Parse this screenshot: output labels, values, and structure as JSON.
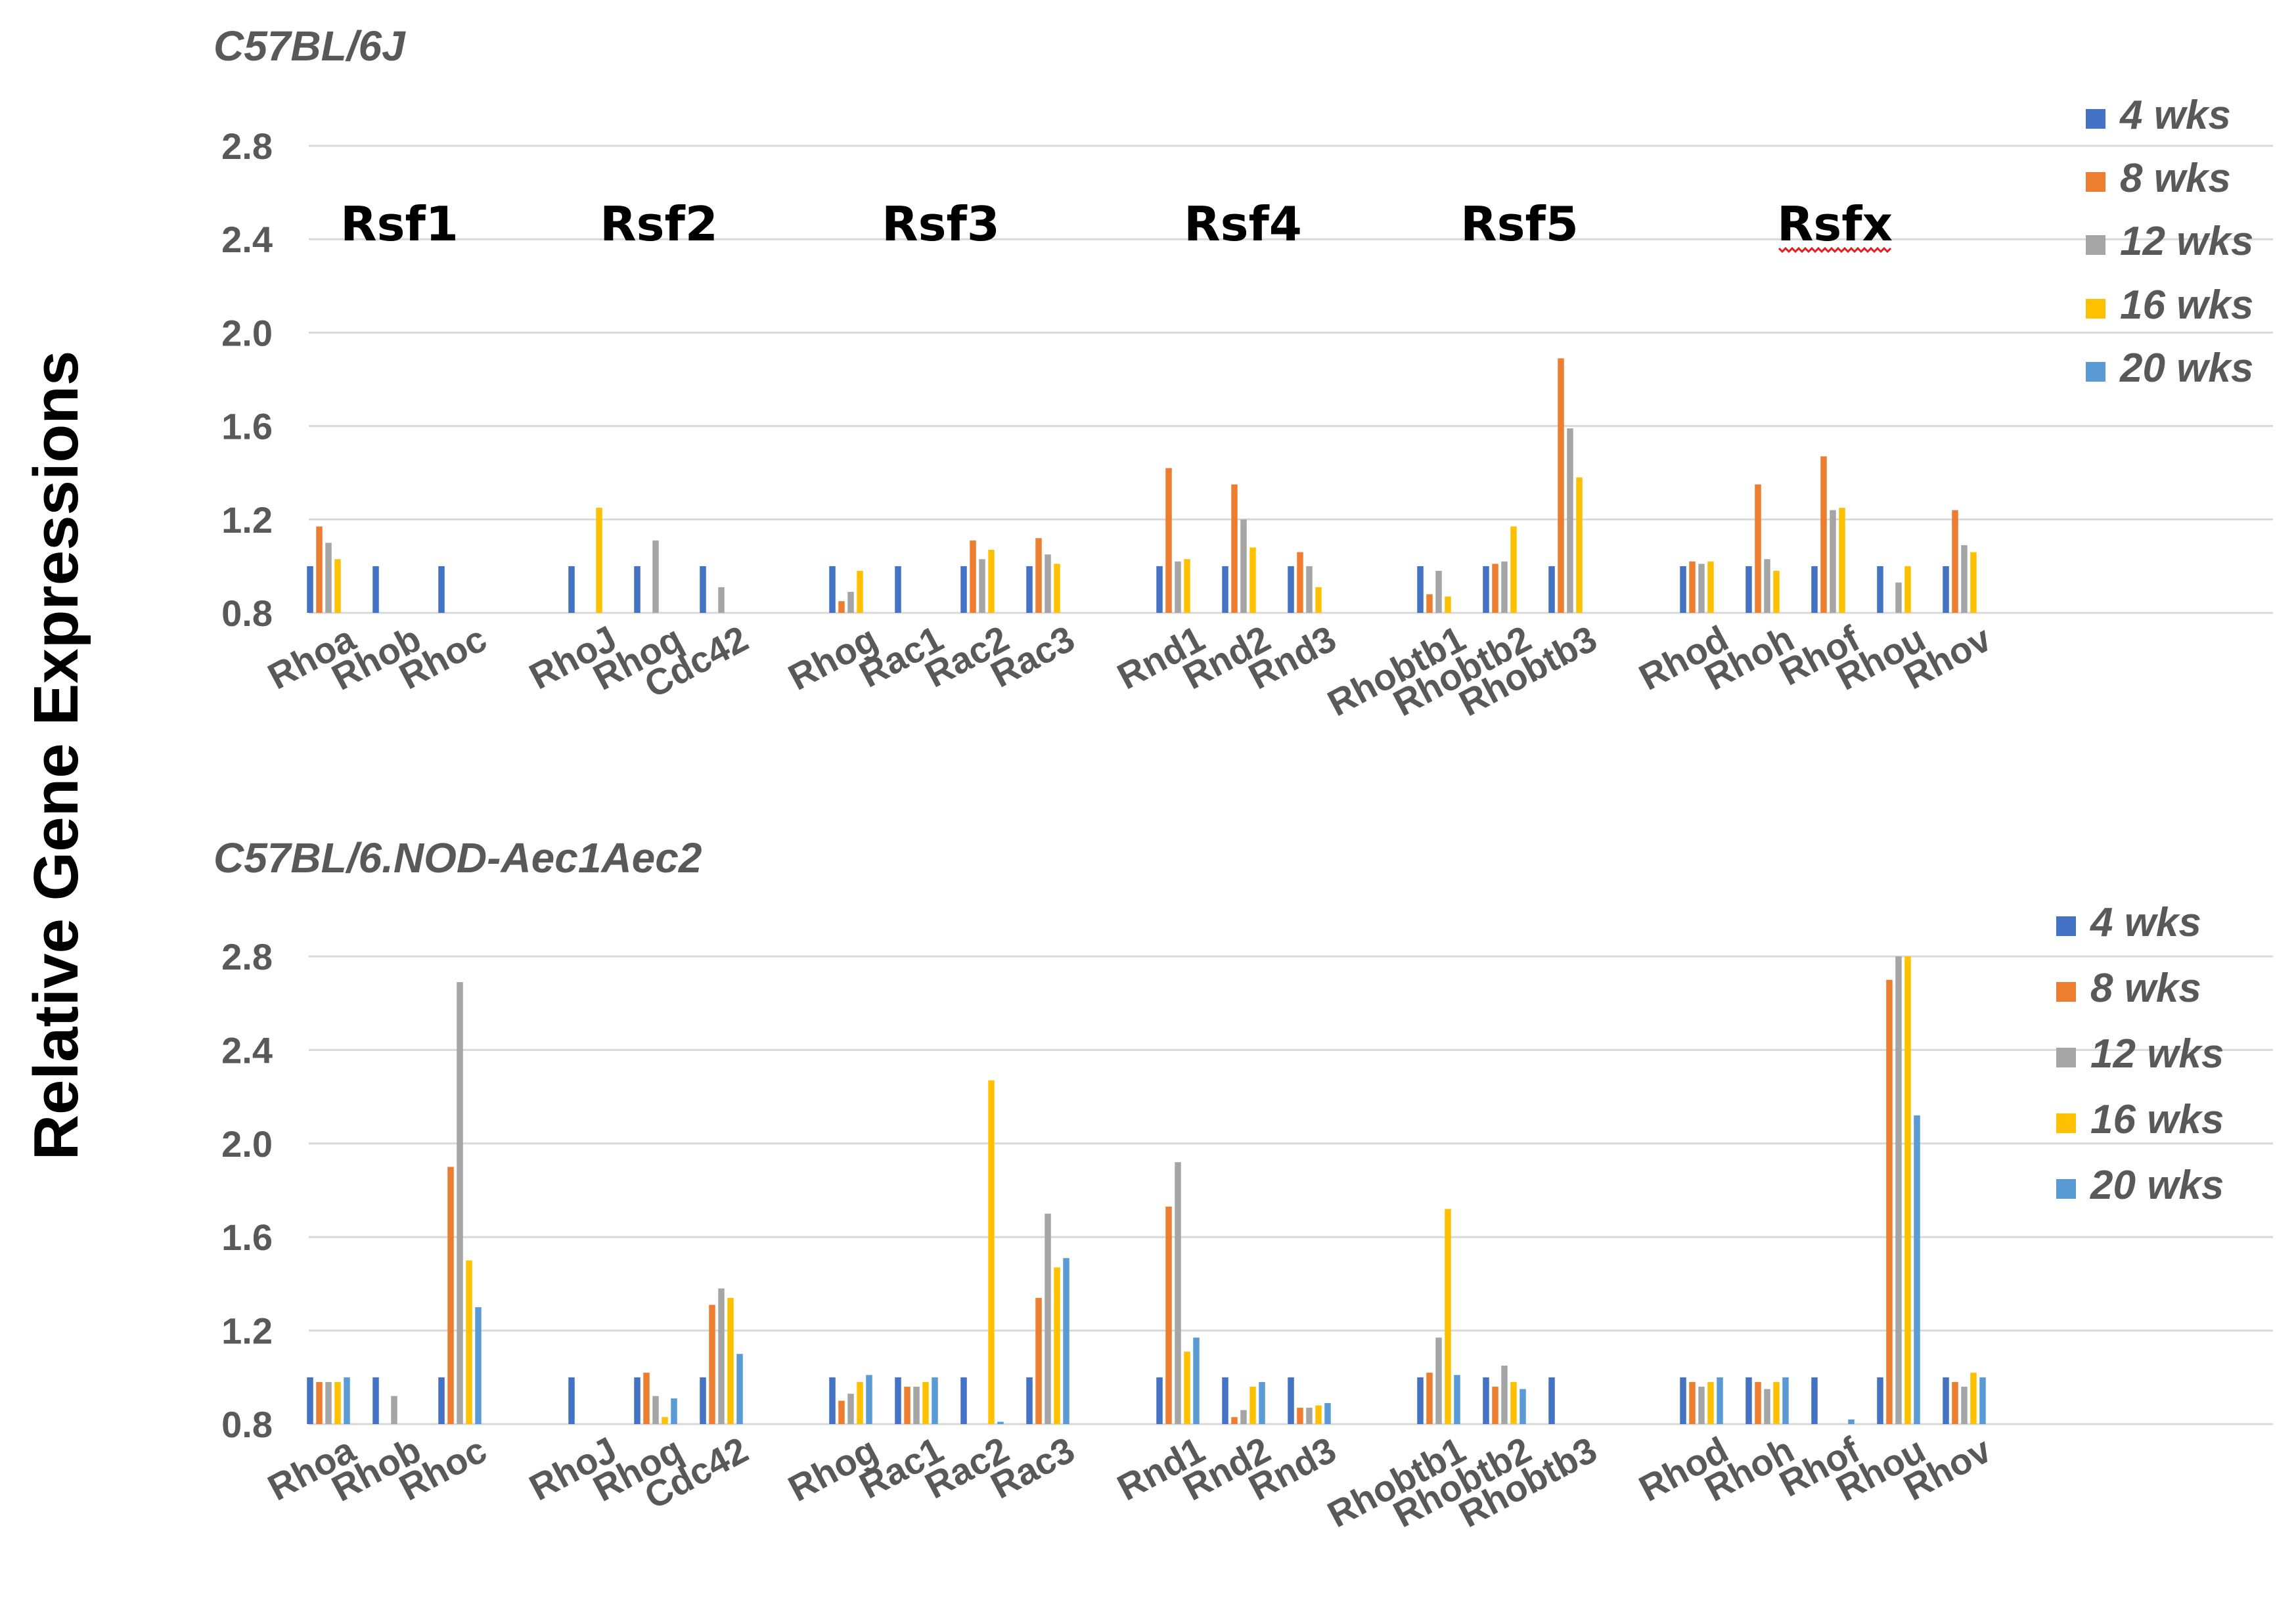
{
  "y_axis_title": "Relative Gene Expressions",
  "chart_data": [
    {
      "type": "bar",
      "title": "C57BL/6J",
      "ylabel": "Relative Gene Expressions",
      "ylim": [
        0.8,
        2.8
      ],
      "yticks": [
        "0.8",
        "1.2",
        "1.6",
        "2.0",
        "2.4",
        "2.8"
      ],
      "legend_position": "right",
      "groups": [
        {
          "label": "Rsf1",
          "genes": [
            "Rhoa",
            "Rhob",
            "Rhoc"
          ]
        },
        {
          "label": "Rsf2",
          "genes": [
            "RhoJ",
            "Rhoq",
            "Cdc42"
          ]
        },
        {
          "label": "Rsf3",
          "genes": [
            "Rhog",
            "Rac1",
            "Rac2",
            "Rac3"
          ]
        },
        {
          "label": "Rsf4",
          "genes": [
            "Rnd1",
            "Rnd2",
            "Rnd3"
          ]
        },
        {
          "label": "Rsf5",
          "genes": [
            "Rhobtb1",
            "Rhobtb2",
            "Rhobtb3"
          ]
        },
        {
          "label": "Rsfx",
          "genes": [
            "Rhod",
            "Rhoh",
            "Rhof",
            "Rhou",
            "Rhov"
          ]
        }
      ],
      "categories": [
        "Rhoa",
        "Rhob",
        "Rhoc",
        "RhoJ",
        "Rhoq",
        "Cdc42",
        "Rhog",
        "Rac1",
        "Rac2",
        "Rac3",
        "Rnd1",
        "Rnd2",
        "Rnd3",
        "Rhobtb1",
        "Rhobtb2",
        "Rhobtb3",
        "Rhod",
        "Rhoh",
        "Rhof",
        "Rhou",
        "Rhov"
      ],
      "series": [
        {
          "name": "4 wks",
          "color": "#4472c4",
          "values": [
            1.0,
            1.0,
            1.0,
            1.0,
            1.0,
            1.0,
            1.0,
            1.0,
            1.0,
            1.0,
            1.0,
            1.0,
            1.0,
            1.0,
            1.0,
            1.0,
            1.0,
            1.0,
            1.0,
            1.0,
            1.0
          ]
        },
        {
          "name": "8 wks",
          "color": "#ed7d31",
          "values": [
            1.17,
            null,
            null,
            null,
            null,
            null,
            0.85,
            null,
            1.11,
            1.12,
            1.42,
            1.35,
            1.06,
            0.88,
            1.01,
            1.89,
            1.02,
            1.35,
            1.47,
            null,
            1.24
          ]
        },
        {
          "name": "12 wks",
          "color": "#a5a5a5",
          "values": [
            1.1,
            null,
            null,
            null,
            1.11,
            0.91,
            0.89,
            null,
            1.03,
            1.05,
            1.02,
            1.2,
            1.0,
            0.98,
            1.02,
            1.59,
            1.01,
            1.03,
            1.24,
            0.93,
            1.09
          ]
        },
        {
          "name": "16 wks",
          "color": "#ffc000",
          "values": [
            1.03,
            null,
            null,
            1.25,
            null,
            null,
            0.98,
            null,
            1.07,
            1.01,
            1.03,
            1.08,
            0.91,
            0.87,
            1.17,
            1.38,
            1.02,
            0.98,
            1.25,
            1.0,
            1.06
          ]
        },
        {
          "name": "20 wks",
          "color": "#5b9bd5",
          "values": [
            null,
            null,
            null,
            null,
            null,
            null,
            null,
            null,
            null,
            null,
            null,
            null,
            null,
            null,
            null,
            null,
            null,
            null,
            null,
            null,
            null
          ]
        }
      ]
    },
    {
      "type": "bar",
      "title": "C57BL/6.NOD-Aec1Aec2",
      "ylabel": "Relative Gene Expressions",
      "ylim": [
        0.8,
        2.8
      ],
      "yticks": [
        "0.8",
        "1.2",
        "1.6",
        "2.0",
        "2.4",
        "2.8"
      ],
      "legend_position": "right",
      "categories": [
        "Rhoa",
        "Rhob",
        "Rhoc",
        "RhoJ",
        "Rhoq",
        "Cdc42",
        "Rhog",
        "Rac1",
        "Rac2",
        "Rac3",
        "Rnd1",
        "Rnd2",
        "Rnd3",
        "Rhobtb1",
        "Rhobtb2",
        "Rhobtb3",
        "Rhod",
        "Rhoh",
        "Rhof",
        "Rhou",
        "Rhov"
      ],
      "series": [
        {
          "name": "4 wks",
          "color": "#4472c4",
          "values": [
            1.0,
            1.0,
            1.0,
            1.0,
            1.0,
            1.0,
            1.0,
            1.0,
            1.0,
            1.0,
            1.0,
            1.0,
            1.0,
            1.0,
            1.0,
            1.0,
            1.0,
            1.0,
            1.0,
            1.0,
            1.0
          ]
        },
        {
          "name": "8 wks",
          "color": "#ed7d31",
          "values": [
            0.98,
            null,
            1.9,
            null,
            1.02,
            1.31,
            0.9,
            0.96,
            null,
            1.34,
            1.73,
            0.83,
            0.87,
            1.02,
            0.96,
            null,
            0.98,
            0.98,
            null,
            2.7,
            0.98
          ]
        },
        {
          "name": "12 wks",
          "color": "#a5a5a5",
          "values": [
            0.98,
            0.92,
            2.69,
            null,
            0.92,
            1.38,
            0.93,
            0.96,
            null,
            1.7,
            1.92,
            0.86,
            0.87,
            1.17,
            1.05,
            null,
            0.96,
            0.95,
            null,
            2.8,
            0.96
          ]
        },
        {
          "name": "16 wks",
          "color": "#ffc000",
          "values": [
            0.98,
            null,
            1.5,
            null,
            0.83,
            1.34,
            0.98,
            0.98,
            2.27,
            1.47,
            1.11,
            0.96,
            0.88,
            1.72,
            0.98,
            null,
            0.98,
            0.98,
            null,
            2.8,
            1.02
          ]
        },
        {
          "name": "20 wks",
          "color": "#5b9bd5",
          "values": [
            1.0,
            null,
            1.3,
            null,
            0.91,
            1.1,
            1.01,
            1.0,
            0.81,
            1.51,
            1.17,
            0.98,
            0.89,
            1.01,
            0.95,
            null,
            1.0,
            1.0,
            0.82,
            2.12,
            1.0
          ]
        }
      ]
    }
  ]
}
